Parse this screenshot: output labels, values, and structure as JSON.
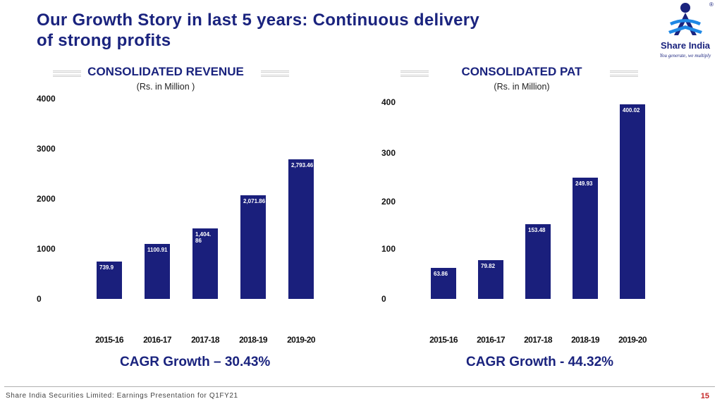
{
  "header": {
    "title": "Our Growth Story in last 5 years: Continuous delivery of strong profits"
  },
  "logo": {
    "name": "Share India",
    "tagline": "You generate, we multiply",
    "reg_mark": "®",
    "icon": "share-india-logo-icon"
  },
  "colors": {
    "accent": "#1a237e",
    "bar": "#1a1f7c",
    "page_number": "#c62828"
  },
  "chart_data": [
    {
      "type": "bar",
      "title": "CONSOLIDATED REVENUE",
      "subtitle": "(Rs. in Million )",
      "categories": [
        "2015-16",
        "2016-17",
        "2017-18",
        "2018-19",
        "2019-20"
      ],
      "values": [
        739.9,
        1100.91,
        1404.86,
        2071.86,
        2793.46
      ],
      "data_labels": [
        "739.9",
        "1100.91",
        "1,404.\n86",
        "2,071.86",
        "2,793.46"
      ],
      "yticks": [
        "0",
        "1000",
        "2000",
        "3000",
        "4000"
      ],
      "ylim": [
        0,
        4000
      ],
      "grid": false,
      "legend": "none"
    },
    {
      "type": "bar",
      "title": "CONSOLIDATED PAT",
      "subtitle": "(Rs. in Million)",
      "categories": [
        "2015-16",
        "2016-17",
        "2017-18",
        "2018-19",
        "2019-20"
      ],
      "values": [
        63.86,
        79.82,
        153.48,
        249.93,
        400.02
      ],
      "data_labels": [
        "63.86",
        "79.82",
        "153.48",
        "249.93",
        "400.02"
      ],
      "yticks": [
        "0",
        "100",
        "200",
        "300",
        "400"
      ],
      "ylim": [
        0,
        400
      ],
      "grid": false,
      "legend": "none"
    }
  ],
  "cagr": {
    "revenue": "CAGR Growth – 30.43%",
    "pat": "CAGR Growth - 44.32%"
  },
  "footer": {
    "text": "Share India Securities Limited: Earnings Presentation for Q1FY21",
    "page": "15"
  }
}
